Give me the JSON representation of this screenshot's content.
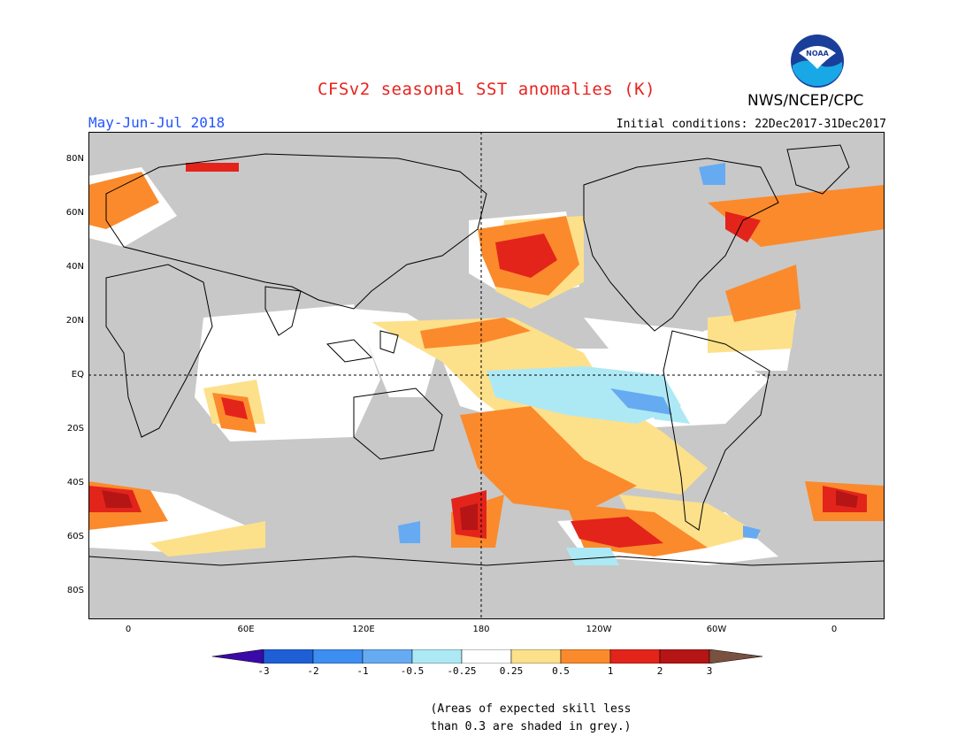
{
  "title": "CFSv2 seasonal SST anomalies (K)",
  "period": "May-Jun-Jul 2018",
  "initial_conditions": "Initial conditions: 22Dec2017-31Dec2017",
  "agency": "NWS/NCEP/CPC",
  "logo_text": "NOAA",
  "note_line1": "(Areas of expected skill less",
  "note_line2": "than 0.3 are shaded in grey.)",
  "lat_labels": [
    "80N",
    "60N",
    "40N",
    "20N",
    "EQ",
    "20S",
    "40S",
    "60S",
    "80S"
  ],
  "lon_labels": [
    "0",
    "60E",
    "120E",
    "180",
    "120W",
    "60W",
    "0"
  ],
  "colorbar_labels": [
    "-3",
    "-2",
    "-1",
    "-0.5",
    "-0.25",
    "0.25",
    "0.5",
    "1",
    "2",
    "3"
  ],
  "colors": {
    "land_grey": "#c8c8c8",
    "ocean_white": "#ffffff",
    "scale": [
      "#3a0aa8",
      "#1f5fd6",
      "#3c8ef0",
      "#66aaf2",
      "#ade9f5",
      "#ffffff",
      "#fde08a",
      "#fb8a2c",
      "#e3241b",
      "#b51515",
      "#7a5040"
    ]
  }
}
